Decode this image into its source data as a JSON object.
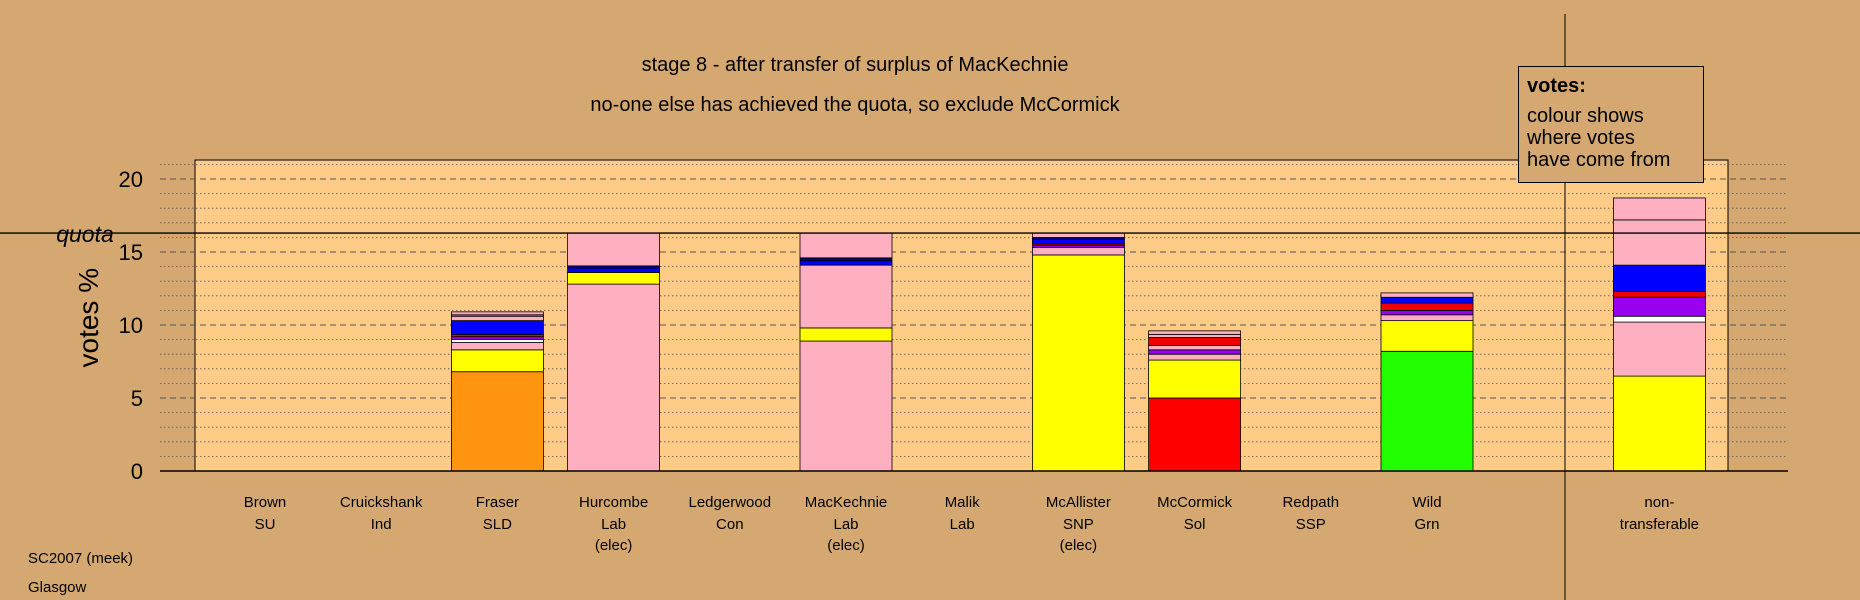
{
  "title_lines": [
    "stage 8 - after transfer of surplus of MacKechnie",
    "no-one else has achieved the quota, so exclude McCormick"
  ],
  "legend": {
    "title": "votes:",
    "lines": [
      "colour shows",
      "where votes",
      "have come from"
    ]
  },
  "footer": [
    "SC2007 (meek)",
    "Glasgow"
  ],
  "chart_data": {
    "type": "bar",
    "stacked": true,
    "ylabel": "votes %",
    "quota_label": "quota",
    "quota": 16.3,
    "ylim": [
      0,
      21.3
    ],
    "yticks": [
      0,
      5,
      10,
      15,
      20
    ],
    "grid": {
      "major_dashed_every": 5,
      "minor_dotted_every": 1
    },
    "colors": {
      "background": "#d4a870",
      "plot_area": "#ffcc88",
      "SNP": "#ffff00",
      "Lab": "#ffb0c0",
      "Lab_dark": "#ff99aa",
      "SLD": "#ff9410",
      "Sol": "#ff0000",
      "Grn": "#22ff00",
      "Con": "#0000ff",
      "navy": "#000080",
      "SSP": "#ee0000",
      "SU": "#9900ee",
      "Ind": "#ffffff"
    },
    "candidates": [
      {
        "name": "Brown",
        "party": "SU",
        "note": "",
        "segments": []
      },
      {
        "name": "Cruickshank",
        "party": "Ind",
        "note": "",
        "segments": []
      },
      {
        "name": "Fraser",
        "party": "SLD",
        "note": "",
        "segments": [
          {
            "from": "SLD",
            "value": 6.8,
            "color": "#ff9410"
          },
          {
            "from": "SNP",
            "value": 1.5,
            "color": "#ffff00"
          },
          {
            "from": "Lab",
            "value": 0.5,
            "color": "#ffb0c0"
          },
          {
            "from": "Ind",
            "value": 0.2,
            "color": "#ffffff"
          },
          {
            "from": "SU",
            "value": 0.2,
            "color": "#9900ee"
          },
          {
            "from": "SSP",
            "value": 0.15,
            "color": "#ee0000"
          },
          {
            "from": "Con",
            "value": 0.95,
            "color": "#0000ff"
          },
          {
            "from": "Lab",
            "value": 0.3,
            "color": "#ffb0c0"
          },
          {
            "from": "Grn",
            "value": 0.1,
            "color": "#22ff00"
          },
          {
            "from": "Lab",
            "value": 0.2,
            "color": "#ffb0c0"
          }
        ]
      },
      {
        "name": "Hurcombe",
        "party": "Lab",
        "note": "(elec)",
        "segments": [
          {
            "from": "Lab",
            "value": 12.8,
            "color": "#ffb0c0"
          },
          {
            "from": "SNP",
            "value": 0.8,
            "color": "#ffff00"
          },
          {
            "from": "Con",
            "value": 0.3,
            "color": "#0000ff"
          },
          {
            "from": "navy",
            "value": 0.15,
            "color": "#000080"
          },
          {
            "from": "Lab",
            "value": 2.25,
            "color": "#ffb0c0"
          }
        ]
      },
      {
        "name": "Ledgerwood",
        "party": "Con",
        "note": "",
        "segments": []
      },
      {
        "name": "MacKechnie",
        "party": "Lab",
        "note": "(elec)",
        "segments": [
          {
            "from": "Lab",
            "value": 8.9,
            "color": "#ffb0c0"
          },
          {
            "from": "SNP",
            "value": 0.9,
            "color": "#ffff00"
          },
          {
            "from": "Lab",
            "value": 4.3,
            "color": "#ffb0c0"
          },
          {
            "from": "Con",
            "value": 0.3,
            "color": "#0000ff"
          },
          {
            "from": "navy",
            "value": 0.2,
            "color": "#000080"
          },
          {
            "from": "Lab",
            "value": 1.7,
            "color": "#ffb0c0"
          }
        ]
      },
      {
        "name": "Malik",
        "party": "Lab",
        "note": "",
        "segments": []
      },
      {
        "name": "McAllister",
        "party": "SNP",
        "note": "(elec)",
        "segments": [
          {
            "from": "SNP",
            "value": 14.8,
            "color": "#ffff00"
          },
          {
            "from": "Lab",
            "value": 0.5,
            "color": "#ffb0c0"
          },
          {
            "from": "SU",
            "value": 0.15,
            "color": "#9900ee"
          },
          {
            "from": "SSP",
            "value": 0.1,
            "color": "#ee0000"
          },
          {
            "from": "Con",
            "value": 0.3,
            "color": "#0000ff"
          },
          {
            "from": "navy",
            "value": 0.15,
            "color": "#000080"
          },
          {
            "from": "Lab",
            "value": 0.3,
            "color": "#ffb0c0"
          }
        ]
      },
      {
        "name": "McCormick",
        "party": "Sol",
        "note": "",
        "segments": [
          {
            "from": "Sol",
            "value": 5.0,
            "color": "#ff0000"
          },
          {
            "from": "SNP",
            "value": 2.6,
            "color": "#ffff00"
          },
          {
            "from": "Lab",
            "value": 0.4,
            "color": "#ffb0c0"
          },
          {
            "from": "SU",
            "value": 0.3,
            "color": "#9900ee"
          },
          {
            "from": "Lab",
            "value": 0.3,
            "color": "#ffb0c0"
          },
          {
            "from": "SSP",
            "value": 0.55,
            "color": "#ee0000"
          },
          {
            "from": "Lab",
            "value": 0.2,
            "color": "#ffb0c0"
          },
          {
            "from": "Lab",
            "value": 0.25,
            "color": "#ffb0c0"
          }
        ]
      },
      {
        "name": "Redpath",
        "party": "SSP",
        "note": "",
        "segments": []
      },
      {
        "name": "Wild",
        "party": "Grn",
        "note": "",
        "segments": [
          {
            "from": "Grn",
            "value": 8.2,
            "color": "#22ff00"
          },
          {
            "from": "SNP",
            "value": 2.1,
            "color": "#ffff00"
          },
          {
            "from": "Lab",
            "value": 0.4,
            "color": "#ffb0c0"
          },
          {
            "from": "SU",
            "value": 0.3,
            "color": "#9900ee"
          },
          {
            "from": "SSP",
            "value": 0.5,
            "color": "#ee0000"
          },
          {
            "from": "Con",
            "value": 0.4,
            "color": "#0000ff"
          },
          {
            "from": "Lab",
            "value": 0.3,
            "color": "#ffb0c0"
          }
        ]
      },
      {
        "name": "",
        "party": "",
        "note": "",
        "segments": []
      },
      {
        "name": "non-",
        "party": "transferable",
        "note": "",
        "segments": [
          {
            "from": "SNP",
            "value": 6.5,
            "color": "#ffff00"
          },
          {
            "from": "Lab",
            "value": 3.7,
            "color": "#ffb0c0"
          },
          {
            "from": "Ind",
            "value": 0.4,
            "color": "#ffffff"
          },
          {
            "from": "SU",
            "value": 1.3,
            "color": "#9900ee"
          },
          {
            "from": "SSP",
            "value": 0.4,
            "color": "#ee0000"
          },
          {
            "from": "Con",
            "value": 1.8,
            "color": "#0000ff"
          },
          {
            "from": "Lab",
            "value": 3.1,
            "color": "#ffb0c0"
          },
          {
            "from": "Lab",
            "value": 1.5,
            "color": "#ffb0c0"
          }
        ]
      }
    ]
  }
}
